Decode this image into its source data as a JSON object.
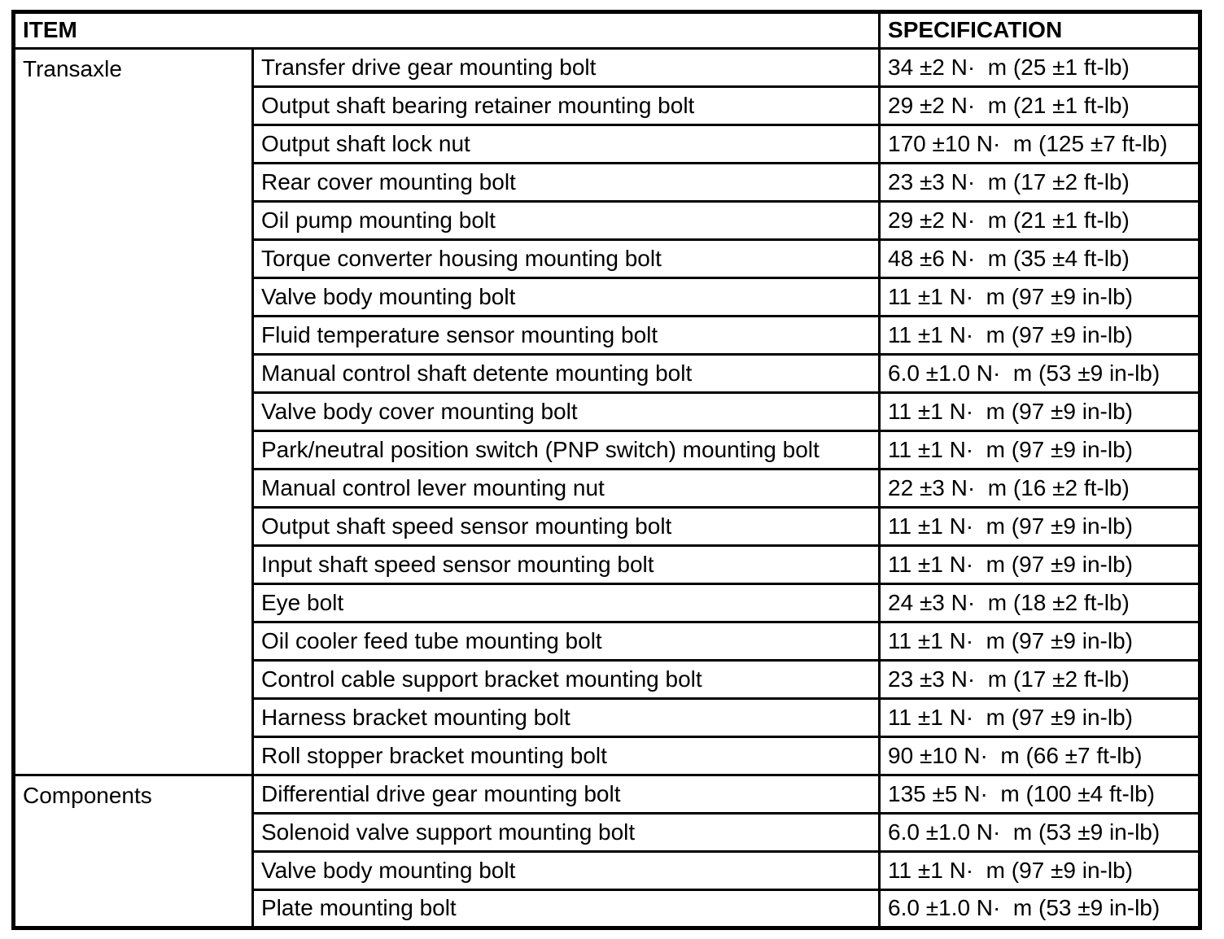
{
  "table": {
    "header": {
      "item_label": "ITEM",
      "specification_label": "SPECIFICATION"
    },
    "colors": {
      "border": "#000000",
      "text": "#000000",
      "background": "#ffffff"
    },
    "groups": [
      {
        "name": "Transaxle",
        "rows": [
          {
            "item": "Transfer drive gear mounting bolt",
            "spec": "34 ±2 N·  m (25 ±1 ft-lb)"
          },
          {
            "item": "Output shaft bearing retainer mounting bolt",
            "spec": "29 ±2 N·  m (21 ±1 ft-lb)"
          },
          {
            "item": "Output shaft lock nut",
            "spec": "170 ±10 N·  m (125 ±7 ft-lb)"
          },
          {
            "item": "Rear cover mounting bolt",
            "spec": "23 ±3 N·  m (17 ±2 ft-lb)"
          },
          {
            "item": "Oil pump mounting bolt",
            "spec": "29 ±2 N·  m (21 ±1 ft-lb)"
          },
          {
            "item": "Torque converter housing mounting bolt",
            "spec": "48 ±6 N·  m (35 ±4 ft-lb)"
          },
          {
            "item": "Valve body mounting bolt",
            "spec": "11 ±1 N·  m (97 ±9 in-lb)"
          },
          {
            "item": "Fluid temperature sensor mounting bolt",
            "spec": "11 ±1 N·  m (97 ±9 in-lb)"
          },
          {
            "item": "Manual control shaft detente mounting bolt",
            "spec": "6.0 ±1.0 N·  m (53 ±9 in-lb)"
          },
          {
            "item": "Valve body cover mounting bolt",
            "spec": "11 ±1 N·  m (97 ±9 in-lb)"
          },
          {
            "item": "Park/neutral position switch (PNP switch) mounting bolt",
            "spec": "11 ±1 N·  m (97 ±9 in-lb)"
          },
          {
            "item": "Manual control lever mounting nut",
            "spec": "22 ±3 N·  m (16 ±2 ft-lb)"
          },
          {
            "item": "Output shaft speed sensor mounting bolt",
            "spec": "11 ±1 N·  m (97 ±9 in-lb)"
          },
          {
            "item": "Input shaft speed sensor mounting bolt",
            "spec": "11 ±1 N·  m (97 ±9 in-lb)"
          },
          {
            "item": "Eye bolt",
            "spec": "24 ±3 N·  m (18 ±2 ft-lb)"
          },
          {
            "item": "Oil cooler feed tube mounting bolt",
            "spec": "11 ±1 N·  m (97 ±9 in-lb)"
          },
          {
            "item": "Control cable support bracket mounting bolt",
            "spec": "23 ±3 N·  m (17 ±2 ft-lb)"
          },
          {
            "item": "Harness bracket mounting bolt",
            "spec": "11 ±1 N·  m (97 ±9 in-lb)"
          },
          {
            "item": "Roll stopper bracket mounting bolt",
            "spec": "90 ±10 N·  m (66 ±7 ft-lb)"
          }
        ]
      },
      {
        "name": "Components",
        "rows": [
          {
            "item": "Differential drive gear mounting bolt",
            "spec": "135 ±5 N·  m (100 ±4 ft-lb)"
          },
          {
            "item": "Solenoid valve support mounting bolt",
            "spec": "6.0 ±1.0 N·  m (53 ±9 in-lb)"
          },
          {
            "item": "Valve body mounting bolt",
            "spec": "11 ±1 N·  m (97 ±9 in-lb)"
          },
          {
            "item": "Plate mounting bolt",
            "spec": "6.0 ±1.0 N·  m (53 ±9 in-lb)"
          }
        ]
      }
    ]
  }
}
